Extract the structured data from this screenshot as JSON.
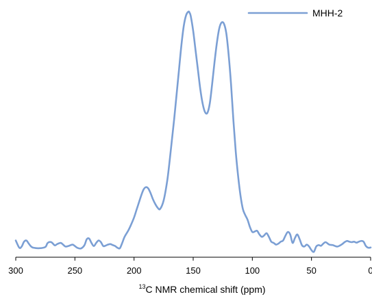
{
  "chart_data": {
    "type": "line",
    "title": "",
    "xlabel": {
      "superscript": "13",
      "text": "C NMR chemical shift (ppm)"
    },
    "ylabel": "",
    "x_reversed": true,
    "xlim": [
      300,
      0
    ],
    "xticks": [
      300,
      250,
      200,
      150,
      100,
      50,
      0
    ],
    "xtick_labels": [
      "300",
      "250",
      "200",
      "150",
      "100",
      "50",
      "0"
    ],
    "y_axis_visible": false,
    "ylim": [
      0,
      100
    ],
    "grid": false,
    "legend": {
      "position": "top-right"
    },
    "series": [
      {
        "name": "MHH-2",
        "color": "#7b9fd4",
        "x": [
          300,
          297,
          295,
          293,
          291,
          289,
          287,
          285,
          280,
          275,
          273,
          270,
          267,
          265,
          262,
          260,
          258,
          255,
          252,
          250,
          248,
          245,
          242,
          240,
          238,
          236,
          234,
          232,
          230,
          228,
          226,
          224,
          222,
          220,
          218,
          216,
          214,
          212,
          210,
          208,
          205,
          203,
          200,
          198,
          196,
          194,
          192,
          190,
          188,
          186,
          184,
          182,
          180,
          178,
          175,
          172,
          170,
          168,
          166,
          164,
          162,
          160,
          158,
          156,
          154,
          153,
          152,
          150,
          148,
          146,
          144,
          142,
          140,
          138,
          136,
          134,
          132,
          130,
          128,
          126,
          124,
          122,
          120,
          118,
          116,
          114,
          112,
          110,
          108,
          106,
          104,
          102,
          100,
          98,
          96,
          94,
          92,
          90,
          88,
          86,
          84,
          82,
          80,
          78,
          76,
          74,
          72,
          70,
          68,
          66,
          64,
          62,
          60,
          58,
          56,
          54,
          52,
          50,
          48,
          46,
          44,
          42,
          40,
          38,
          35,
          32,
          30,
          28,
          26,
          24,
          22,
          20,
          18,
          16,
          14,
          12,
          10,
          8,
          6,
          4,
          2,
          0
        ],
        "y": [
          5.5,
          2.5,
          3.0,
          5.0,
          5.5,
          4.2,
          3.0,
          2.5,
          2.3,
          2.8,
          4.5,
          4.8,
          3.5,
          4.0,
          4.5,
          3.8,
          3.0,
          3.3,
          3.8,
          3.2,
          2.5,
          2.2,
          3.5,
          6.0,
          6.3,
          4.5,
          3.2,
          4.5,
          5.5,
          4.8,
          3.2,
          3.4,
          3.8,
          4.0,
          3.6,
          3.2,
          2.5,
          2.3,
          4.5,
          7.0,
          9.5,
          11.5,
          15.0,
          18.0,
          21.0,
          24.0,
          26.5,
          27.5,
          27.0,
          25.0,
          22.5,
          20.5,
          19.0,
          18.5,
          22.0,
          30.0,
          38.0,
          47.0,
          56.0,
          66.0,
          76.0,
          86.0,
          94.0,
          98.5,
          100.0,
          99.5,
          98.0,
          92.0,
          84.0,
          76.0,
          68.0,
          62.0,
          58.5,
          58.2,
          62.0,
          70.0,
          79.0,
          87.0,
          93.0,
          95.5,
          95.0,
          91.0,
          82.0,
          70.0,
          55.0,
          42.0,
          32.0,
          24.0,
          18.5,
          16.0,
          14.0,
          11.0,
          9.0,
          9.2,
          9.5,
          8.0,
          7.0,
          7.6,
          8.5,
          7.0,
          5.0,
          4.5,
          3.8,
          4.2,
          5.0,
          5.5,
          7.5,
          9.0,
          8.0,
          4.5,
          6.5,
          8.0,
          6.0,
          3.5,
          3.0,
          3.8,
          3.0,
          1.5,
          0.8,
          3.0,
          3.6,
          3.3,
          4.2,
          4.8,
          3.8,
          3.6,
          3.2,
          3.0,
          3.4,
          4.0,
          4.8,
          5.3,
          5.0,
          4.8,
          5.0,
          4.6,
          5.0,
          5.3,
          5.0,
          3.2,
          2.5,
          2.6
        ]
      }
    ]
  }
}
